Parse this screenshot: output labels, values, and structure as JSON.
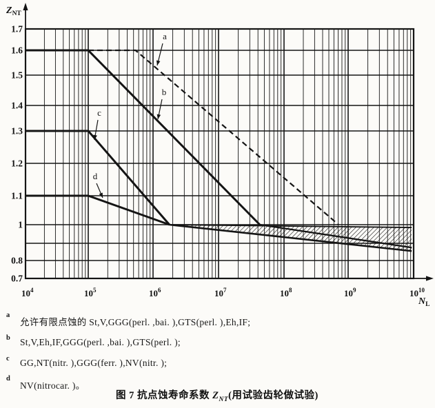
{
  "colors": {
    "ink": "#141414",
    "paper": "#fcfbf8"
  },
  "chart_data": {
    "type": "line",
    "title": "图 7  抗点蚀寿命系数 ZNT(用试验齿轮做试验)",
    "x_axis": {
      "label_base": "N",
      "label_sub": "L",
      "scale": "log",
      "xlim": [
        10000,
        10000000000
      ],
      "tick_base": "10",
      "tick_exponents": [
        4,
        5,
        6,
        7,
        8,
        9,
        10
      ]
    },
    "y_axis": {
      "label_base": "Z",
      "label_sub": "NT",
      "ylim": [
        0.7,
        1.7
      ],
      "grid_step": 0.1,
      "ticks": [
        {
          "z": 1.7,
          "label": "1.7"
        },
        {
          "z": 1.6,
          "label": "1.6"
        },
        {
          "z": 1.5,
          "label": "1.5"
        },
        {
          "z": 1.4,
          "label": "1.4"
        },
        {
          "z": 1.3,
          "label": "1.3"
        },
        {
          "z": 1.2,
          "label": "1.2"
        },
        {
          "z": 1.1,
          "label": "1.1"
        },
        {
          "z": 1.0,
          "label": "1"
        },
        {
          "z": 0.9,
          "label": ""
        },
        {
          "z": 0.8,
          "label": "0.8"
        },
        {
          "z": 0.7,
          "label": "0.7"
        }
      ]
    },
    "grid": "log-minor-verticals, 0.1-horizontals",
    "series": [
      {
        "name": "curve-a",
        "style": "dashed",
        "width": 2.2,
        "points": [
          [
            5.0,
            1.6
          ],
          [
            5.73,
            1.6
          ],
          [
            8.85,
            1.0
          ]
        ]
      },
      {
        "name": "curve-b",
        "style": "solid",
        "width": 3.0,
        "points": [
          [
            4.0,
            1.6
          ],
          [
            5.0,
            1.6
          ],
          [
            7.63,
            1.0
          ]
        ]
      },
      {
        "name": "curve-c",
        "style": "solid",
        "width": 3.0,
        "points": [
          [
            4.0,
            1.3
          ],
          [
            5.0,
            1.3
          ],
          [
            6.25,
            1.0
          ]
        ]
      },
      {
        "name": "curve-d",
        "style": "solid",
        "width": 3.0,
        "points": [
          [
            4.0,
            1.1
          ],
          [
            5.0,
            1.1
          ],
          [
            6.25,
            1.0
          ]
        ]
      },
      {
        "name": "band-bottom",
        "style": "solid",
        "width": 2.6,
        "points": [
          [
            6.25,
            1.0
          ],
          [
            9.97,
            0.855
          ]
        ]
      },
      {
        "name": "curve-b-continuation",
        "style": "solid",
        "width": 2.3,
        "points": [
          [
            7.63,
            1.0
          ],
          [
            9.97,
            0.875
          ]
        ]
      },
      {
        "name": "band-top",
        "style": "solid",
        "width": 1.9,
        "points": [
          [
            6.25,
            1.0
          ],
          [
            9.97,
            0.985
          ]
        ]
      }
    ],
    "hatch_band": {
      "from_logN": 6.4,
      "to_logN": 9.97,
      "top": "band-top",
      "bottom": "band-bottom"
    },
    "annotations": [
      {
        "label": "a",
        "tx": 239,
        "ty": 57,
        "x1": 236,
        "y1": 63,
        "x2": 228,
        "y2": 95
      },
      {
        "label": "b",
        "tx": 238,
        "ty": 138,
        "x1": 235,
        "y1": 144,
        "x2": 229,
        "y2": 173
      },
      {
        "label": "c",
        "tx": 144,
        "ty": 168,
        "x1": 142,
        "y1": 174,
        "x2": 137,
        "y2": 203
      },
      {
        "label": "d",
        "tx": 138,
        "ty": 260,
        "x1": 140,
        "y1": 266,
        "x2": 149,
        "y2": 287
      }
    ]
  },
  "footnotes": [
    {
      "key": "a",
      "text": "允许有限点蚀的 St,V,GGG(perl. ,bai. ),GTS(perl. ),Eh,IF;"
    },
    {
      "key": "b",
      "text": "St,V,Eh,IF,GGG(perl. ,bai. ),GTS(perl. );"
    },
    {
      "key": "c",
      "text": "GG,NT(nitr. ),GGG(ferr. ),NV(nitr. );"
    },
    {
      "key": "d",
      "text": "NV(nitrocar. )。"
    }
  ],
  "caption": {
    "prefix": "图 7  抗点蚀寿命系数 ",
    "z": "Z",
    "sub": "NT",
    "suffix": "(用试验齿轮做试验)"
  }
}
